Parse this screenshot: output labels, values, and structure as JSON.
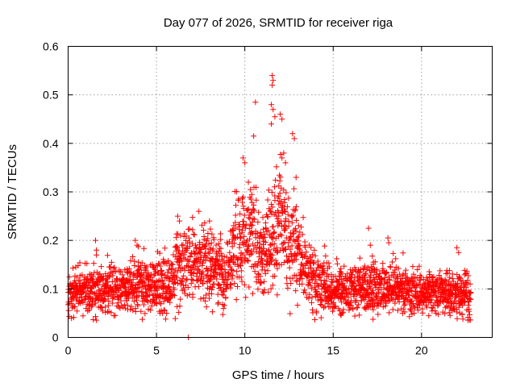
{
  "chart_data": {
    "type": "scatter",
    "title": "Day 077 of 2026, SRMTID for receiver riga",
    "xlabel": "GPS time / hours",
    "ylabel": "SRMTID / TECUs",
    "xlim": [
      0,
      24
    ],
    "ylim": [
      0,
      0.6
    ],
    "xticks": [
      0,
      5,
      10,
      15,
      20
    ],
    "yticks": [
      0,
      0.1,
      0.2,
      0.3,
      0.4,
      0.5,
      0.6
    ],
    "xtick_labels": [
      "0",
      "5",
      "10",
      "15",
      "20"
    ],
    "ytick_labels": [
      "0",
      "0.1",
      "0.2",
      "0.3",
      "0.4",
      "0.5",
      "0.6"
    ],
    "grid": true,
    "marker": "+",
    "series": [
      {
        "name": "SRMTID",
        "color": "#ff0000",
        "envelope": {
          "x": [
            0,
            1,
            2,
            3,
            4,
            5,
            5.5,
            6,
            6.5,
            7,
            7.5,
            8,
            8.5,
            9,
            9.5,
            10,
            10.5,
            11,
            11.5,
            12,
            12.5,
            13,
            13.5,
            14,
            15,
            16,
            17,
            18,
            19,
            20,
            21,
            22,
            22.8
          ],
          "y_center": [
            0.09,
            0.1,
            0.1,
            0.1,
            0.11,
            0.11,
            0.1,
            0.13,
            0.15,
            0.15,
            0.16,
            0.15,
            0.14,
            0.13,
            0.18,
            0.22,
            0.2,
            0.16,
            0.2,
            0.23,
            0.2,
            0.17,
            0.14,
            0.12,
            0.1,
            0.1,
            0.1,
            0.1,
            0.1,
            0.09,
            0.09,
            0.09,
            0.09
          ],
          "y_spread": [
            0.03,
            0.035,
            0.035,
            0.035,
            0.04,
            0.04,
            0.04,
            0.05,
            0.06,
            0.06,
            0.06,
            0.055,
            0.05,
            0.05,
            0.07,
            0.09,
            0.08,
            0.06,
            0.1,
            0.1,
            0.08,
            0.06,
            0.05,
            0.045,
            0.035,
            0.035,
            0.035,
            0.035,
            0.035,
            0.03,
            0.03,
            0.03,
            0.03
          ]
        },
        "highlights": [
          {
            "x": 1.55,
            "y": 0.2
          },
          {
            "x": 1.6,
            "y": 0.18
          },
          {
            "x": 1.6,
            "y": 0.17
          },
          {
            "x": 3.8,
            "y": 0.2
          },
          {
            "x": 3.9,
            "y": 0.19
          },
          {
            "x": 6.2,
            "y": 0.25
          },
          {
            "x": 6.3,
            "y": 0.24
          },
          {
            "x": 7.4,
            "y": 0.26
          },
          {
            "x": 8.0,
            "y": 0.24
          },
          {
            "x": 9.9,
            "y": 0.37
          },
          {
            "x": 10.0,
            "y": 0.36
          },
          {
            "x": 10.2,
            "y": 0.32
          },
          {
            "x": 10.6,
            "y": 0.485
          },
          {
            "x": 10.5,
            "y": 0.415
          },
          {
            "x": 11.55,
            "y": 0.54
          },
          {
            "x": 11.6,
            "y": 0.53
          },
          {
            "x": 11.55,
            "y": 0.52
          },
          {
            "x": 11.5,
            "y": 0.48
          },
          {
            "x": 11.6,
            "y": 0.47
          },
          {
            "x": 11.7,
            "y": 0.455
          },
          {
            "x": 11.5,
            "y": 0.44
          },
          {
            "x": 12.0,
            "y": 0.46
          },
          {
            "x": 12.1,
            "y": 0.45
          },
          {
            "x": 12.2,
            "y": 0.38
          },
          {
            "x": 12.1,
            "y": 0.37
          },
          {
            "x": 12.3,
            "y": 0.36
          },
          {
            "x": 12.7,
            "y": 0.42
          },
          {
            "x": 12.8,
            "y": 0.41
          },
          {
            "x": 12.9,
            "y": 0.33
          },
          {
            "x": 17.0,
            "y": 0.225
          },
          {
            "x": 17.1,
            "y": 0.19
          },
          {
            "x": 18.1,
            "y": 0.205
          },
          {
            "x": 18.15,
            "y": 0.195
          },
          {
            "x": 22.0,
            "y": 0.185
          },
          {
            "x": 22.1,
            "y": 0.175
          },
          {
            "x": 6.8,
            "y": 0.0
          }
        ]
      }
    ]
  }
}
